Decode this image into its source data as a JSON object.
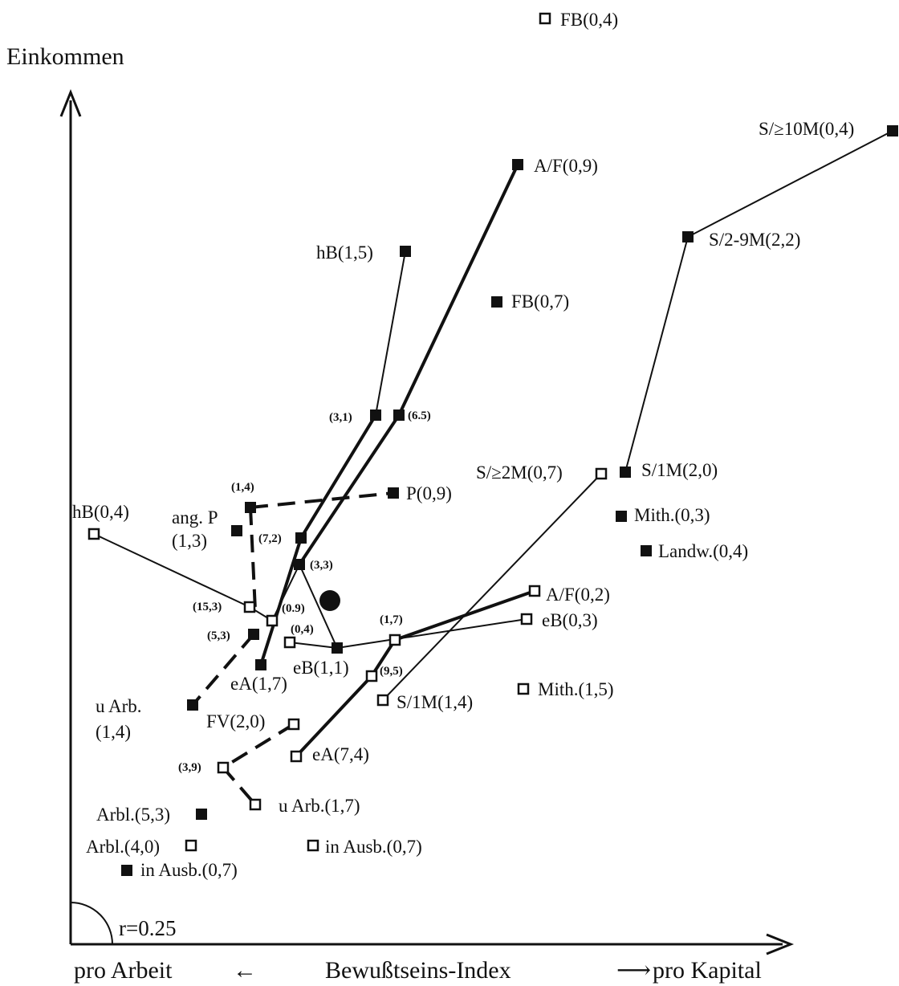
{
  "axes": {
    "y_label": "Einkommen",
    "x_left": "pro Arbeit",
    "x_center": "Bewußtseins-Index",
    "x_right": "pro Kapital",
    "arrow_left": "←",
    "arrow_right": "⟶",
    "corr": "r=0.25"
  },
  "labels": {
    "fb04_top": "FB(0,4)",
    "s10m": "S/≥10M(0,4)",
    "af09": "A/F(0,9)",
    "s29m": "S/2-9M(2,2)",
    "hb15": "hB(1,5)",
    "fb07": "FB(0,7)",
    "n31": "(3,1)",
    "n65": "(6.5)",
    "s2m": "S/≥2M(0,7)",
    "s1m20": "S/1M(2,0)",
    "n14a": "(1,4)",
    "p09": "P(0,9)",
    "hb04": "hB(0,4)",
    "angp1": "ang. P",
    "angp2": "(1,3)",
    "mith03": "Mith.(0,3)",
    "n72": "(7,2)",
    "landw": "Landw.(0,4)",
    "n33": "(3,3)",
    "af02": "A/F(0,2)",
    "n153": "(15,3)",
    "n09": "(0.9)",
    "n17a": "(1,7)",
    "eb03": "eB(0,3)",
    "n04": "(0,4)",
    "n53": "(5,3)",
    "eb11": "eB(1,1)",
    "n95": "(9,5)",
    "ea17": "eA(1,7)",
    "mith15": "Mith.(1,5)",
    "uarb1": "u Arb.",
    "uarb2": "(1,4)",
    "s1m14": "S/1M(1,4)",
    "fv20": "FV(2,0)",
    "ea74": "eA(7,4)",
    "n39": "(3,9)",
    "uarb17": "u Arb.(1,7)",
    "arbl53": "Arbl.(5,3)",
    "arbl40": "Arbl.(4,0)",
    "inausb_open": "in Ausb.(0,7)",
    "inausb_filled": "in Ausb.(0,7)"
  }
}
